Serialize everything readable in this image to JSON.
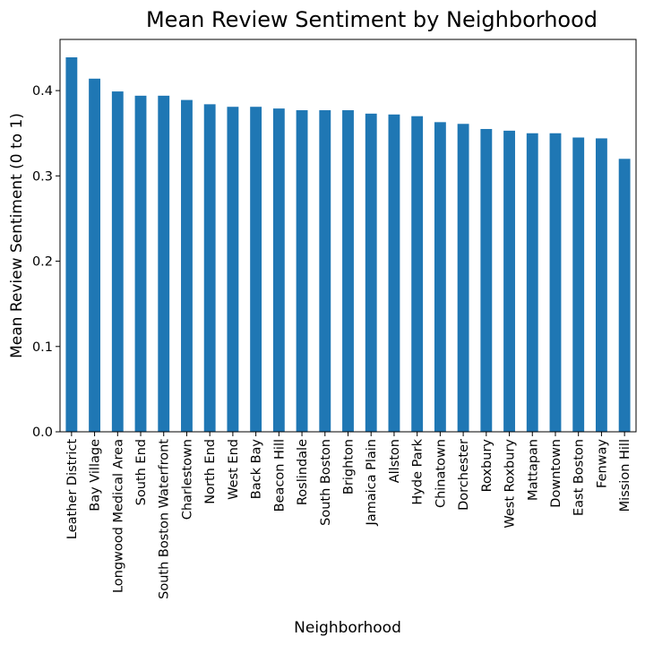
{
  "chart_data": {
    "type": "bar",
    "title": "Mean Review Sentiment by Neighborhood",
    "xlabel": "Neighborhood",
    "ylabel": "Mean Review Sentiment (0 to 1)",
    "ylim": [
      0,
      0.46
    ],
    "yticks": [
      "0.0",
      "0.1",
      "0.2",
      "0.3",
      "0.4"
    ],
    "grid": false,
    "legend": "none",
    "bar_color": "#1f77b4",
    "categories": [
      "Leather District",
      "Bay Village",
      "Longwood Medical Area",
      "South End",
      "South Boston Waterfront",
      "Charlestown",
      "North End",
      "West End",
      "Back Bay",
      "Beacon Hill",
      "Roslindale",
      "South Boston",
      "Brighton",
      "Jamaica Plain",
      "Allston",
      "Hyde Park",
      "Chinatown",
      "Dorchester",
      "Roxbury",
      "West Roxbury",
      "Mattapan",
      "Downtown",
      "East Boston",
      "Fenway",
      "Mission Hill"
    ],
    "values": [
      0.439,
      0.414,
      0.399,
      0.394,
      0.394,
      0.389,
      0.384,
      0.381,
      0.381,
      0.379,
      0.377,
      0.377,
      0.377,
      0.373,
      0.372,
      0.37,
      0.363,
      0.361,
      0.355,
      0.353,
      0.35,
      0.35,
      0.345,
      0.344,
      0.32
    ]
  }
}
